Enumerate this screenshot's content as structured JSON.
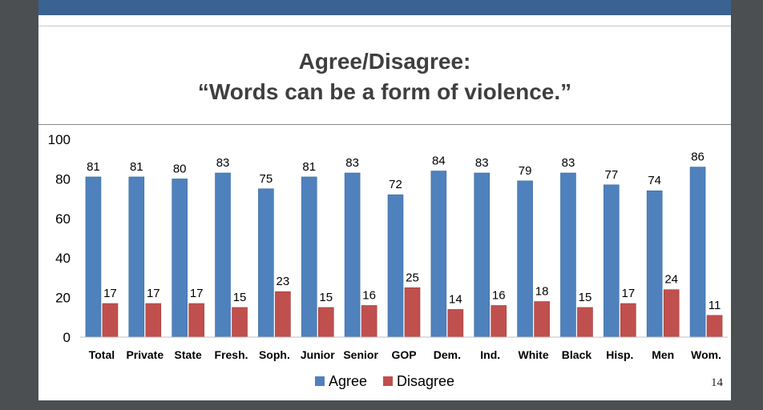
{
  "slide": {
    "title_line1": "Agree/Disagree:",
    "title_line2": "“Words can be a form of violence.”",
    "page_number": "14"
  },
  "colors": {
    "agree": "#4f81bd",
    "disagree": "#c0504d",
    "band": "#3a6391"
  },
  "chart_data": {
    "type": "bar",
    "title": "Agree/Disagree: “Words can be a form of violence.”",
    "categories": [
      "Total",
      "Private",
      "State",
      "Fresh.",
      "Soph.",
      "Junior",
      "Senior",
      "GOP",
      "Dem.",
      "Ind.",
      "White",
      "Black",
      "Hisp.",
      "Men",
      "Wom."
    ],
    "series": [
      {
        "name": "Agree",
        "values": [
          81,
          81,
          80,
          83,
          75,
          81,
          83,
          72,
          84,
          83,
          79,
          83,
          77,
          74,
          86
        ]
      },
      {
        "name": "Disagree",
        "values": [
          17,
          17,
          17,
          15,
          23,
          15,
          16,
          25,
          14,
          16,
          18,
          15,
          17,
          24,
          11
        ]
      }
    ],
    "ylim": [
      0,
      100
    ],
    "yticks": [
      0,
      20,
      40,
      60,
      80,
      100
    ],
    "xlabel": "",
    "ylabel": "",
    "grid": false,
    "legend": "bottom"
  }
}
